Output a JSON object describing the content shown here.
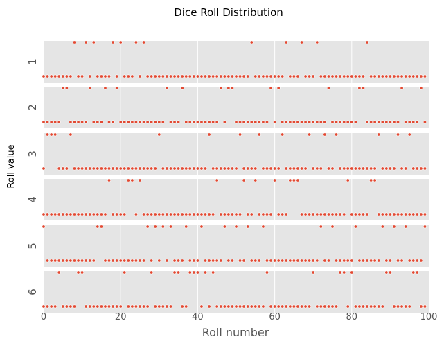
{
  "chart_data": {
    "type": "scatter",
    "title": "Dice Roll Distribution",
    "xlabel": "Roll number",
    "ylabel": "Roll value",
    "xlim": [
      0,
      100
    ],
    "xticks": [
      0,
      20,
      40,
      60,
      80,
      100
    ],
    "xtick_labels": [
      "0",
      "20",
      "40",
      "60",
      "80",
      "100"
    ],
    "grid": true,
    "colors": {
      "marker": "#e24a33",
      "marker_edge": "#ffffff",
      "panel_bg": "#e5e5e5",
      "grid": "#ffffff"
    },
    "panels": [
      {
        "label": "1",
        "hits": [
          8,
          11,
          13,
          18,
          20,
          24,
          26,
          54,
          63,
          67,
          71,
          84
        ]
      },
      {
        "label": "2",
        "hits": [
          5,
          6,
          12,
          16,
          19,
          32,
          36,
          46,
          48,
          49,
          59,
          61,
          74,
          82,
          83,
          93,
          98
        ]
      },
      {
        "label": "3",
        "hits": [
          1,
          2,
          3,
          7,
          30,
          43,
          51,
          56,
          62,
          69,
          73,
          76,
          87,
          92,
          95
        ]
      },
      {
        "label": "4",
        "hits": [
          17,
          22,
          23,
          25,
          45,
          52,
          55,
          60,
          64,
          65,
          66,
          79,
          85,
          86
        ]
      },
      {
        "label": "5",
        "hits": [
          0,
          14,
          15,
          27,
          29,
          31,
          33,
          37,
          41,
          47,
          50,
          53,
          57,
          72,
          75,
          81,
          88,
          91,
          94,
          99
        ]
      },
      {
        "label": "6",
        "hits": [
          4,
          9,
          10,
          21,
          28,
          34,
          35,
          38,
          39,
          40,
          42,
          44,
          58,
          70,
          77,
          78,
          80,
          89,
          90,
          96,
          97
        ]
      }
    ]
  }
}
